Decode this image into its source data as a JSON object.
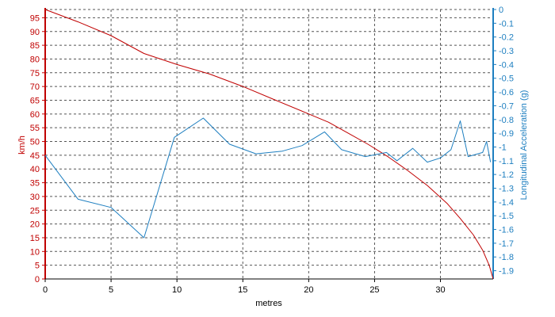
{
  "chart_data": {
    "type": "line",
    "xlabel": "metres",
    "ylabel_left": "km/h",
    "ylabel_right": "Longitudinal Acceleration (g)",
    "xlim": [
      0,
      34
    ],
    "ylim_left": [
      0,
      98
    ],
    "ylim_right": [
      -1.96,
      0
    ],
    "x_ticks": [
      0,
      5,
      10,
      15,
      20,
      25,
      30
    ],
    "y_left_ticks": [
      0,
      5,
      10,
      15,
      20,
      25,
      30,
      35,
      40,
      45,
      50,
      55,
      60,
      65,
      70,
      75,
      80,
      85,
      90,
      95
    ],
    "y_right_ticks": [
      "0",
      "-0.1",
      "-0.2",
      "-0.3",
      "-0.4",
      "-0.5",
      "-0.6",
      "-0.7",
      "-0.8",
      "-0.9",
      "-1",
      "-1.1",
      "-1.2",
      "-1.3",
      "-1.4",
      "-1.5",
      "-1.6",
      "-1.7",
      "-1.8",
      "-1.9"
    ],
    "grid": true,
    "colors": {
      "speed": "#c00000",
      "accel": "#1e7fc0"
    },
    "series": [
      {
        "axis": "left",
        "x": [
          0,
          2.5,
          5,
          7.5,
          10,
          12.5,
          15,
          17.5,
          20,
          21.5,
          23,
          24.5,
          26,
          27.5,
          29,
          30.5,
          31.5,
          32.5,
          33.2,
          33.7,
          34
        ],
        "values": [
          98,
          93.5,
          88.5,
          82,
          78,
          74.5,
          70,
          65,
          60,
          57,
          53,
          49,
          44.5,
          39.5,
          34,
          27.5,
          22,
          16,
          10.5,
          5,
          0
        ]
      },
      {
        "axis": "right",
        "x": [
          0,
          2.5,
          5,
          7.5,
          9.8,
          12,
          14,
          16,
          18,
          19.5,
          21.2,
          22.5,
          24.3,
          25.9,
          26.7,
          27.9,
          29,
          30,
          30.8,
          31.5,
          32.1,
          33.2,
          33.5,
          33.8
        ],
        "values": [
          -1.06,
          -1.38,
          -1.44,
          -1.66,
          -0.93,
          -0.79,
          -0.98,
          -1.05,
          -1.03,
          -0.99,
          -0.89,
          -1.02,
          -1.07,
          -1.04,
          -1.1,
          -1.01,
          -1.11,
          -1.08,
          -1.02,
          -0.81,
          -1.07,
          -1.04,
          -0.96,
          -1.11
        ]
      }
    ]
  }
}
